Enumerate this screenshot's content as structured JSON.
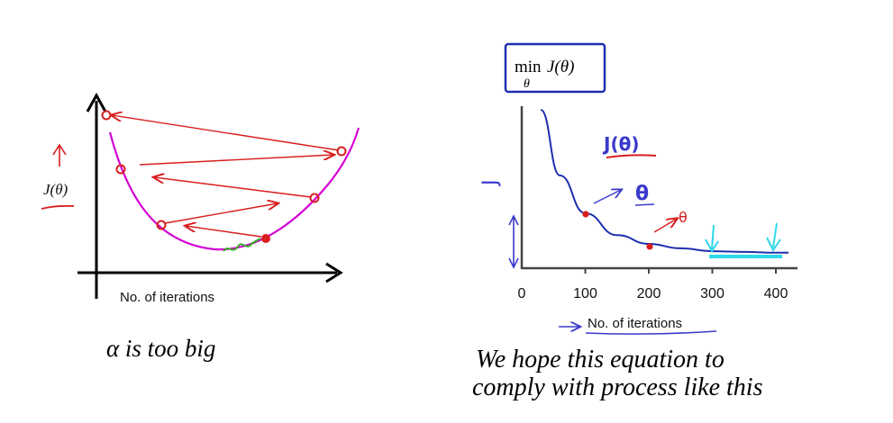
{
  "left_panel": {
    "ylabel": "J(θ)",
    "xlabel": "No. of iterations",
    "caption": "α is too big",
    "colors": {
      "curve": "#d400d4",
      "arrows": "#d81e1e",
      "green": "#3aa82a",
      "axis": "#000000"
    }
  },
  "right_panel": {
    "box_label_prefix": "min",
    "box_label_sub": "θ",
    "box_label_main": "J(θ)",
    "xlabel": "No. of iterations",
    "ylabel_glyph": "J",
    "note_j": "J(θ)",
    "note_theta_1": "θ",
    "note_theta_2": "θ",
    "caption_line1": "We hope this equation to",
    "caption_line2": "comply with process like this",
    "colors": {
      "curve": "#1f2fb0",
      "ink": "#3a3acc",
      "red": "#d81e1e",
      "cyan": "#2fd8e8",
      "axis": "#444444"
    },
    "chart_data": {
      "type": "line",
      "xlabel": "No. of iterations",
      "ylabel": "",
      "xlim": [
        0,
        420
      ],
      "xticks": [
        "0",
        "100",
        "200",
        "300",
        "400"
      ],
      "x": [
        30,
        60,
        100,
        150,
        200,
        250,
        300,
        350,
        400
      ],
      "y": [
        1.0,
        0.55,
        0.29,
        0.14,
        0.08,
        0.05,
        0.03,
        0.025,
        0.02
      ]
    }
  }
}
